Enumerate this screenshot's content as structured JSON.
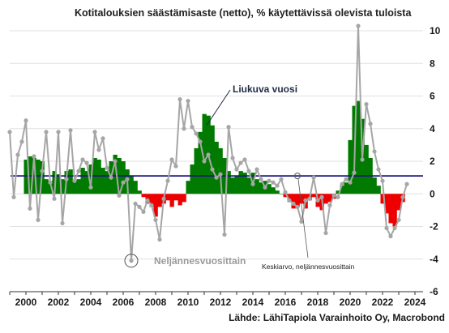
{
  "chart_data": {
    "type": "bar+line",
    "title": "Kotitalouksien säästämisaste (netto), % käytettävissä olevista tuloista",
    "source": "Lähde: LähiTapiola Varainhoito Oy, Macrobond",
    "xlim": [
      1999,
      2024.5
    ],
    "ylim": [
      -6,
      10.5
    ],
    "x_ticks": [
      "2000",
      "2002",
      "2004",
      "2006",
      "2008",
      "2010",
      "2012",
      "2014",
      "2016",
      "2018",
      "2020",
      "2022",
      "2024"
    ],
    "y_ticks": [
      "10",
      "8",
      "6",
      "4",
      "2",
      "0",
      "-2",
      "-4",
      "-6"
    ],
    "y_axis_side": "right",
    "grid": "horizontal",
    "colors": {
      "positive_bar": "#007a00",
      "negative_bar": "#ee0000",
      "quarterly_line": "#a6a6a6",
      "mean_line": "#1c1a7a"
    },
    "mean": {
      "value": 1.1,
      "label": "Keskiarvo, neljännesvuosittain"
    },
    "series": [
      {
        "name": "Liukuva vuosi",
        "kind": "bar",
        "start": 2000.0,
        "step": 0.25,
        "values": [
          2.1,
          2.3,
          2.2,
          2.1,
          2.0,
          0.9,
          0.8,
          1.4,
          1.2,
          0.9,
          1.4,
          1.5,
          0.8,
          0.9,
          1.6,
          1.4,
          1.8,
          2.2,
          2.1,
          1.6,
          1.4,
          2.0,
          2.4,
          2.2,
          2.0,
          1.5,
          1.1,
          0.8,
          0.2,
          -0.2,
          -0.6,
          -0.8,
          -1.4,
          -0.8,
          -0.6,
          -0.4,
          -0.8,
          -0.4,
          -0.7,
          -0.5,
          0.8,
          1.8,
          2.8,
          3.8,
          4.9,
          4.8,
          4.2,
          3.2,
          2.8,
          2.2,
          1.4,
          1.0,
          1.1,
          1.4,
          1.3,
          1.0,
          1.3,
          0.9,
          0.7,
          0.8,
          0.6,
          0.4,
          0.2,
          0.0,
          -0.2,
          -0.5,
          -0.9,
          -0.8,
          -0.6,
          -0.9,
          -0.4,
          -0.2,
          -0.8,
          -1.0,
          -0.6,
          -0.5,
          -0.3,
          0.2,
          0.5,
          0.7,
          3.3,
          5.4,
          5.7,
          4.6,
          3.0,
          2.2,
          1.0,
          0.5,
          -0.6,
          -1.2,
          -1.8,
          -2.0,
          -1.0,
          -0.5
        ]
      },
      {
        "name": "Neljännesvuosittain",
        "kind": "line",
        "start": 1999.0,
        "step": 0.25,
        "values": [
          3.8,
          -0.2,
          2.4,
          3.2,
          4.5,
          -0.9,
          2.3,
          -1.6,
          1.4,
          3.8,
          0.7,
          -0.3,
          3.8,
          -1.8,
          0.9,
          3.9,
          0.8,
          1.4,
          2.1,
          1.9,
          0.4,
          3.8,
          2.7,
          3.4,
          1.6,
          1.0,
          2.0,
          -0.1,
          0.7,
          0.9,
          -4.1,
          -0.6,
          -0.8,
          -1.1,
          -0.4,
          -0.7,
          -1.6,
          -2.8,
          -0.3,
          0.8,
          2.1,
          1.7,
          5.8,
          4.0,
          5.7,
          4.1,
          3.7,
          3.2,
          2.0,
          2.4,
          1.5,
          1.0,
          1.2,
          -2.5,
          4.1,
          2.2,
          1.5,
          1.9,
          2.1,
          1.4,
          0.6,
          1.5,
          0.9,
          0.4,
          0.8,
          0.7,
          0.5,
          0.9,
          0.1,
          -0.4,
          -0.6,
          -0.8,
          -1.7,
          -0.4,
          -0.3,
          1.0,
          -0.4,
          -0.2,
          -2.4,
          -0.7,
          -0.1,
          -0.2,
          0.6,
          0.9,
          0.7,
          1.3,
          10.3,
          2.1,
          5.5,
          4.3,
          2.6,
          1.5,
          0.8,
          -2.1,
          -2.6,
          -2.1,
          -1.6,
          -0.2,
          0.6
        ]
      }
    ],
    "annotations": [
      {
        "text": "Liukuva vuosi",
        "style": "strong"
      },
      {
        "text": "Neljännesvuosittain",
        "style": "gray"
      },
      {
        "text": "Keskiarvo, neljännesvuosittain",
        "style": "small"
      }
    ]
  }
}
